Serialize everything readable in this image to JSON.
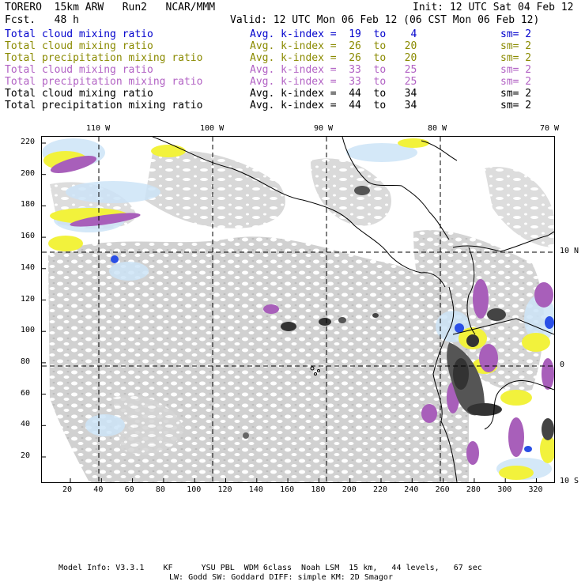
{
  "header": {
    "model": "TORERO  15km ARW   Run2   NCAR/MMM",
    "fcst": "Fcst.   48 h",
    "init": "Init: 12 UTC Sat 04 Feb 12",
    "valid": "Valid: 12 UTC Mon 06 Feb 12 (06 CST Mon 06 Feb 12)"
  },
  "legend": [
    {
      "field": "Total cloud mixing ratio",
      "kindex": "Avg. k-index =  19  to    4",
      "sm": "sm= 2",
      "color": "#0000cc"
    },
    {
      "field": "Total cloud mixing ratio",
      "kindex": "Avg. k-index =  26  to   20",
      "sm": "sm= 2",
      "color": "#8a8a00"
    },
    {
      "field": "Total precipitation mixing ratio",
      "kindex": "Avg. k-index =  26  to   20",
      "sm": "sm= 2",
      "color": "#8a8a00"
    },
    {
      "field": "Total cloud mixing ratio",
      "kindex": "Avg. k-index =  33  to   25",
      "sm": "sm= 2",
      "color": "#b262c4"
    },
    {
      "field": "Total precipitation mixing ratio",
      "kindex": "Avg. k-index =  33  to   25",
      "sm": "sm= 2",
      "color": "#b262c4"
    },
    {
      "field": "Total cloud mixing ratio",
      "kindex": "Avg. k-index =  44  to   34",
      "sm": "sm= 2",
      "color": "#000000"
    },
    {
      "field": "Total precipitation mixing ratio",
      "kindex": "Avg. k-index =  44  to   34",
      "sm": "sm= 2",
      "color": "#000000"
    }
  ],
  "axes": {
    "top_labels": [
      "110 W",
      "100 W",
      "90 W",
      "80 W",
      "70 W"
    ],
    "right_labels": [
      "10 N",
      "0",
      "10 S"
    ],
    "left_ticks": [
      "220",
      "200",
      "180",
      "160",
      "140",
      "120",
      "100",
      "80",
      "60",
      "40",
      "20"
    ],
    "bottom_ticks": [
      "20",
      "40",
      "60",
      "80",
      "100",
      "120",
      "140",
      "160",
      "180",
      "200",
      "220",
      "240",
      "260",
      "280",
      "300",
      "320"
    ]
  },
  "colors": {
    "gray_light": "#cfcfcf",
    "gray_mid": "#a8a8a8",
    "gray_dark": "#333333",
    "purple": "#a85fba",
    "yellow": "#f2f23c",
    "light_blue": "#cde4f7",
    "blue": "#2a4fe6"
  },
  "footer": {
    "line1": "Model Info: V3.3.1    KF      YSU PBL  WDM 6class  Noah LSM  15 km,   44 levels,   67 sec",
    "line2": "LW: Godd SW: Goddard DIFF: simple KM: 2D Smagor"
  }
}
